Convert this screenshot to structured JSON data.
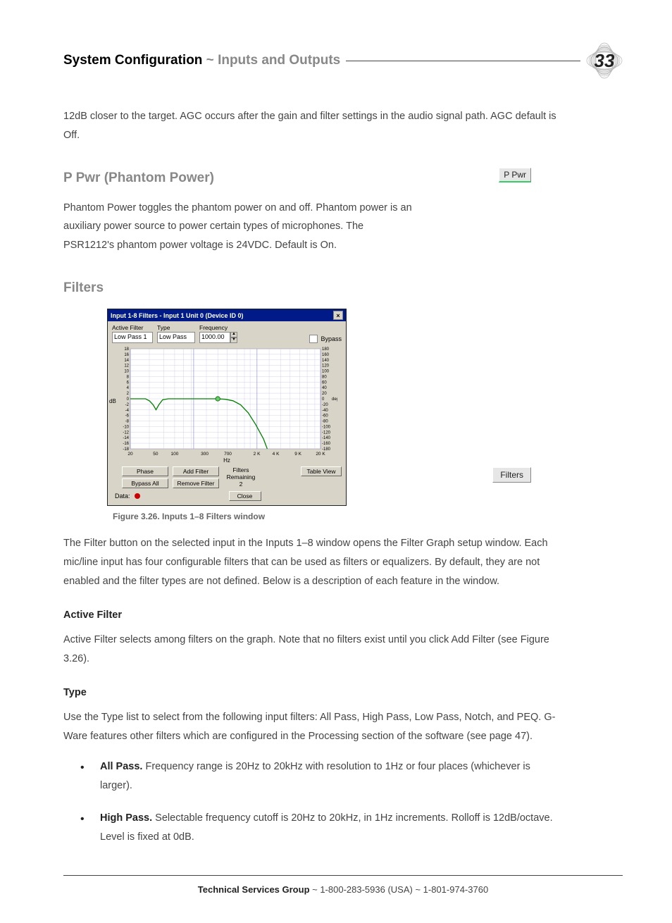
{
  "header": {
    "title_bold": "System Configuration",
    "title_sep": " ~ ",
    "title_light": "Inputs and Outputs",
    "page_number": "33"
  },
  "intro_para": "12dB closer to the target. AGC occurs after the gain and filter settings in the audio signal path. AGC default is Off.",
  "ppwr": {
    "heading": "P Pwr (Phantom Power)",
    "para": "Phantom Power toggles the phantom power on and off. Phantom power is an auxiliary power source to power certain types of microphones. The PSR1212's phantom power voltage is 24VDC. Default is On.",
    "button_label": "P Pwr"
  },
  "filters": {
    "heading": "Filters",
    "caption": "Figure 3.26. Inputs 1–8 Filters window",
    "intro": "The Filter button on the selected input in the Inputs 1–8 window opens the Filter Graph setup window. Each mic/line input has four configurable filters that can be used as filters or equalizers. By default, they are not enabled and the filter types are not defined. Below is a description of each feature in the window.",
    "button_label": "Filters",
    "active_filter_h": "Active Filter",
    "active_filter_p": "Active Filter selects among filters on the graph. Note that no filters exist until you click Add Filter (see Figure 3.26).",
    "type_h": "Type",
    "type_p": "Use the Type list to select from the following input filters: All Pass, High Pass, Low Pass, Notch, and PEQ. G-Ware features other filters which are configured in the Processing section of the software (see page 47).",
    "bullets": [
      {
        "lead": "All Pass.",
        "rest": " Frequency range is 20Hz to 20kHz with resolution to 1Hz or four places (whichever is larger)."
      },
      {
        "lead": "High Pass.",
        "rest": " Selectable frequency cutoff is 20Hz to 20kHz, in 1Hz increments. Rolloff is 12dB/octave. Level is fixed at 0dB."
      }
    ]
  },
  "dialog": {
    "title": "Input 1-8 Filters - Input 1  Unit 0 (Device ID 0)",
    "active_filter_label": "Active Filter",
    "active_filter_value": "Low Pass 1",
    "type_label": "Type",
    "type_value": "Low Pass",
    "frequency_label": "Frequency",
    "frequency_value": "1000.00",
    "bypass_label": "Bypass",
    "chart": {
      "background_color": "#ffffff",
      "grid_color": "#c8c8e6",
      "curve_color": "#008000",
      "node_fill": "#66cc66",
      "node_stroke": "#006600",
      "y_label_left": "dB",
      "y_label_right_top": "deg",
      "x_label": "Hz",
      "y_ticks_left": [
        "18",
        "16",
        "14",
        "12",
        "10",
        "8",
        "6",
        "4",
        "2",
        "0",
        "-2",
        "-4",
        "-6",
        "-8",
        "-10",
        "-12",
        "-14",
        "-16",
        "-18"
      ],
      "y_ticks_right": [
        "180",
        "160",
        "140",
        "120",
        "100",
        "80",
        "60",
        "40",
        "20",
        "0",
        "-20",
        "-40",
        "-60",
        "-80",
        "-100",
        "-120",
        "-140",
        "-160",
        "-180"
      ],
      "x_ticks": [
        "20",
        "50",
        "100",
        "300",
        "700",
        "2 K",
        "4 K",
        "9 K",
        "20 K"
      ],
      "x_tick_pos": [
        0,
        0.133,
        0.233,
        0.391,
        0.513,
        0.665,
        0.765,
        0.882,
        1.0
      ],
      "curve_points": [
        [
          0.0,
          0.5
        ],
        [
          0.05,
          0.5
        ],
        [
          0.08,
          0.5
        ],
        [
          0.1,
          0.52
        ],
        [
          0.12,
          0.56
        ],
        [
          0.135,
          0.61
        ],
        [
          0.15,
          0.56
        ],
        [
          0.17,
          0.51
        ],
        [
          0.2,
          0.5
        ],
        [
          0.3,
          0.5
        ],
        [
          0.4,
          0.5
        ],
        [
          0.46,
          0.5
        ],
        [
          0.5,
          0.505
        ],
        [
          0.54,
          0.52
        ],
        [
          0.58,
          0.56
        ],
        [
          0.62,
          0.64
        ],
        [
          0.66,
          0.76
        ],
        [
          0.7,
          0.9
        ],
        [
          0.72,
          1.0
        ]
      ],
      "node": [
        0.46,
        0.5
      ]
    },
    "buttons": {
      "phase": "Phase",
      "bypass_all": "Bypass All",
      "add_filter": "Add Filter",
      "remove_filter": "Remove Filter",
      "table_view": "Table View",
      "close": "Close"
    },
    "filters_remaining_label": "Filters Remaining",
    "filters_remaining_value": "2",
    "data_label": "Data:"
  },
  "footer": {
    "bold": "Technical Services Group",
    "rest": " ~ 1-800-283-5936 (USA) ~ 1-801-974-3760"
  }
}
